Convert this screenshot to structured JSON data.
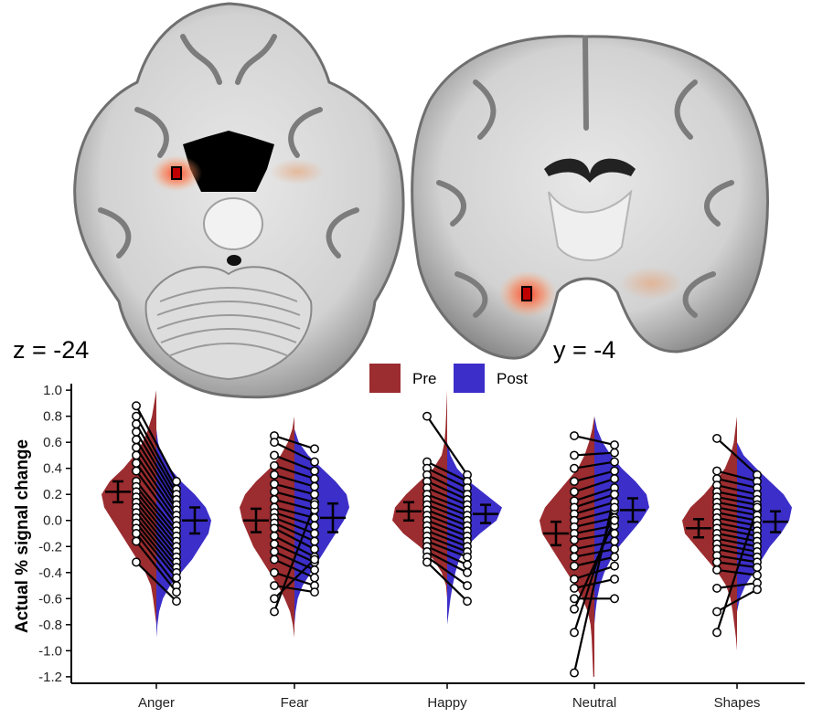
{
  "brain_images": {
    "axial": {
      "label": "z = -24"
    },
    "coronal": {
      "label": "y = -4"
    }
  },
  "legend": {
    "items": [
      {
        "label": "Pre",
        "color": "#9b2c2f"
      },
      {
        "label": "Post",
        "color": "#3c2ec8"
      }
    ]
  },
  "chart_data": {
    "type": "split-violin",
    "title": "",
    "xlabel": "",
    "ylabel": "Actual % signal change",
    "ylim": [
      -1.25,
      1.05
    ],
    "yticks": [
      1.0,
      0.8,
      0.6,
      0.4,
      0.2,
      0.0,
      -0.2,
      -0.4,
      -0.6,
      -0.8,
      -1.0,
      -1.2
    ],
    "ytick_labels": [
      "1.0",
      "0.8",
      "0.6",
      "0.4",
      "0.2",
      "0.0",
      "-0.2",
      "-0.4",
      "-0.6",
      "-0.8",
      "-1.0",
      "-1.2"
    ],
    "categories": [
      "Anger",
      "Fear",
      "Happy",
      "Neutral",
      "Shapes"
    ],
    "series": [
      {
        "name": "Pre",
        "color": "#9b2c2f",
        "mean": [
          0.22,
          0.0,
          0.07,
          -0.1,
          -0.06
        ],
        "error": [
          0.08,
          0.09,
          0.07,
          0.09,
          0.07
        ],
        "points": [
          [
            0.88,
            0.8,
            0.74,
            0.68,
            0.62,
            0.56,
            0.5,
            0.44,
            0.38,
            0.3,
            0.26,
            0.22,
            0.18,
            0.14,
            0.1,
            0.06,
            0.02,
            -0.02,
            -0.06,
            -0.1,
            -0.16,
            -0.32
          ],
          [
            0.65,
            0.6,
            0.5,
            0.42,
            0.35,
            0.28,
            0.22,
            0.16,
            0.1,
            0.06,
            0.02,
            -0.02,
            -0.06,
            -0.12,
            -0.18,
            -0.24,
            -0.3,
            -0.4,
            -0.5,
            -0.6,
            -0.7
          ],
          [
            0.8,
            0.45,
            0.4,
            0.35,
            0.3,
            0.25,
            0.2,
            0.16,
            0.12,
            0.08,
            0.04,
            0.0,
            -0.04,
            -0.08,
            -0.12,
            -0.16,
            -0.2,
            -0.24,
            -0.28,
            -0.32
          ],
          [
            0.65,
            0.5,
            0.4,
            0.3,
            0.22,
            0.15,
            0.1,
            0.05,
            0.0,
            -0.05,
            -0.1,
            -0.15,
            -0.22,
            -0.28,
            -0.35,
            -0.45,
            -0.52,
            -0.6,
            -0.68,
            -0.86,
            -1.17
          ],
          [
            0.63,
            0.38,
            0.32,
            0.27,
            0.22,
            0.18,
            0.14,
            0.1,
            0.06,
            0.02,
            -0.02,
            -0.06,
            -0.1,
            -0.14,
            -0.18,
            -0.22,
            -0.27,
            -0.32,
            -0.38,
            -0.52,
            -0.7,
            -0.86
          ]
        ]
      },
      {
        "name": "Post",
        "color": "#3c2ec8",
        "mean": [
          0.0,
          0.02,
          0.05,
          0.08,
          -0.01
        ],
        "error": [
          0.1,
          0.11,
          0.07,
          0.09,
          0.08
        ],
        "points": [
          [
            0.3,
            0.24,
            0.2,
            0.16,
            0.12,
            0.08,
            0.04,
            0.0,
            -0.04,
            -0.08,
            -0.12,
            -0.16,
            -0.2,
            -0.24,
            -0.28,
            -0.32,
            -0.36,
            -0.4,
            -0.44,
            -0.5,
            -0.55,
            -0.62
          ],
          [
            0.55,
            0.45,
            0.38,
            0.32,
            0.26,
            0.2,
            0.14,
            0.08,
            0.02,
            -0.04,
            -0.1,
            -0.16,
            -0.22,
            -0.28,
            -0.32,
            -0.38,
            -0.44,
            -0.5,
            -0.55,
            -0.3,
            0.12
          ],
          [
            0.35,
            0.3,
            0.25,
            0.2,
            0.16,
            0.12,
            0.08,
            0.04,
            0.0,
            -0.04,
            -0.08,
            -0.12,
            -0.16,
            -0.2,
            -0.24,
            -0.28,
            -0.34,
            -0.4,
            -0.5,
            -0.62
          ],
          [
            0.58,
            0.52,
            0.45,
            0.38,
            0.32,
            0.25,
            0.2,
            0.14,
            0.08,
            0.02,
            -0.04,
            -0.1,
            -0.16,
            -0.22,
            -0.28,
            -0.35,
            -0.45,
            -0.6,
            0.0,
            0.1,
            0.2
          ],
          [
            0.35,
            0.3,
            0.25,
            0.2,
            0.16,
            0.12,
            0.08,
            0.04,
            0.0,
            -0.04,
            -0.08,
            -0.12,
            -0.16,
            -0.2,
            -0.24,
            -0.28,
            -0.32,
            -0.36,
            -0.42,
            -0.48,
            -0.53,
            0.1
          ]
        ]
      }
    ],
    "density": {
      "y": [
        -1.2,
        -1.1,
        -1.0,
        -0.9,
        -0.8,
        -0.7,
        -0.6,
        -0.5,
        -0.4,
        -0.3,
        -0.2,
        -0.1,
        0.0,
        0.1,
        0.2,
        0.3,
        0.4,
        0.5,
        0.6,
        0.7,
        0.8,
        0.9,
        1.0
      ],
      "Pre": [
        [
          0,
          0,
          0,
          0,
          0,
          0.03,
          0.06,
          0.1,
          0.2,
          0.35,
          0.5,
          0.65,
          0.8,
          0.95,
          1.0,
          0.85,
          0.6,
          0.4,
          0.25,
          0.15,
          0.08,
          0.04,
          0.0
        ],
        [
          0,
          0,
          0,
          0,
          0.03,
          0.08,
          0.18,
          0.3,
          0.45,
          0.6,
          0.75,
          0.85,
          0.95,
          1.0,
          0.9,
          0.7,
          0.45,
          0.25,
          0.12,
          0.04,
          0,
          0,
          0
        ],
        [
          0,
          0,
          0,
          0,
          0,
          0,
          0,
          0.02,
          0.1,
          0.25,
          0.5,
          0.8,
          1.0,
          0.95,
          0.75,
          0.5,
          0.25,
          0.1,
          0.05,
          0.03,
          0.02,
          0.01,
          0
        ],
        [
          0.02,
          0.03,
          0.04,
          0.05,
          0.07,
          0.12,
          0.22,
          0.35,
          0.5,
          0.65,
          0.8,
          0.95,
          1.0,
          0.9,
          0.7,
          0.5,
          0.3,
          0.18,
          0.1,
          0.04,
          0,
          0,
          0
        ],
        [
          0,
          0,
          0,
          0.02,
          0.05,
          0.08,
          0.12,
          0.2,
          0.35,
          0.55,
          0.75,
          0.95,
          1.0,
          0.85,
          0.6,
          0.4,
          0.22,
          0.12,
          0.06,
          0.03,
          0,
          0,
          0
        ]
      ],
      "Post": [
        [
          0,
          0,
          0,
          0,
          0.02,
          0.05,
          0.12,
          0.25,
          0.45,
          0.65,
          0.8,
          0.95,
          1.0,
          0.9,
          0.7,
          0.45,
          0.25,
          0.1,
          0.03,
          0,
          0,
          0,
          0
        ],
        [
          0,
          0,
          0,
          0,
          0,
          0.02,
          0.06,
          0.15,
          0.3,
          0.45,
          0.6,
          0.75,
          0.9,
          1.0,
          0.95,
          0.75,
          0.5,
          0.25,
          0.08,
          0,
          0,
          0,
          0
        ],
        [
          0,
          0,
          0,
          0,
          0,
          0.03,
          0.06,
          0.1,
          0.15,
          0.22,
          0.35,
          0.6,
          0.9,
          1.0,
          0.7,
          0.4,
          0.18,
          0.06,
          0,
          0,
          0,
          0,
          0
        ],
        [
          0,
          0,
          0,
          0,
          0,
          0.02,
          0.05,
          0.1,
          0.18,
          0.3,
          0.45,
          0.65,
          0.85,
          1.0,
          0.95,
          0.75,
          0.5,
          0.3,
          0.15,
          0.05,
          0,
          0,
          0
        ],
        [
          0,
          0,
          0,
          0,
          0,
          0,
          0.05,
          0.15,
          0.3,
          0.45,
          0.6,
          0.8,
          0.95,
          1.0,
          0.85,
          0.6,
          0.35,
          0.12,
          0,
          0,
          0,
          0,
          0
        ]
      ]
    },
    "legend_position": "top-center"
  }
}
